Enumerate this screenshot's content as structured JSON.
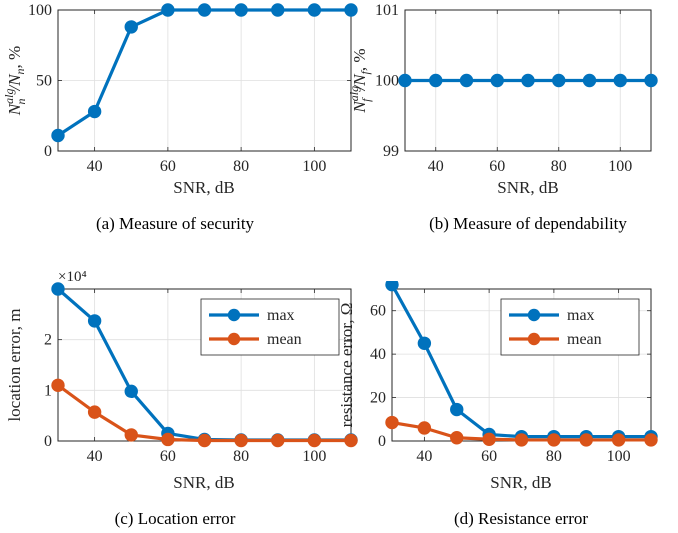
{
  "chart_data": [
    {
      "id": "a",
      "type": "line",
      "caption": "(a) Measure of security",
      "xlabel": "SNR, dB",
      "ylabel": "N_n^{alg}/N_n, %",
      "ylabel_parts": {
        "main": "N",
        "sup": "alg",
        "sub": "n",
        "rest": "/N",
        "sub2": "n",
        "unit": ", %"
      },
      "xlim": [
        30,
        110
      ],
      "ylim": [
        0,
        100
      ],
      "xticks": [
        40,
        60,
        80,
        100
      ],
      "yticks": [
        0,
        50,
        100
      ],
      "grid": true,
      "series": [
        {
          "color": "#0072BD",
          "x": [
            30,
            40,
            50,
            60,
            70,
            80,
            90,
            100,
            110
          ],
          "y": [
            11,
            28,
            88,
            100,
            100,
            100,
            100,
            100,
            100
          ]
        }
      ]
    },
    {
      "id": "b",
      "type": "line",
      "caption": "(b) Measure of dependability",
      "xlabel": "SNR, dB",
      "ylabel": "N_f^{alg}/N_f, %",
      "ylabel_parts": {
        "main": "N",
        "sup": "alg",
        "sub": "f",
        "rest": "/N",
        "sub2": "f",
        "unit": ", %"
      },
      "xlim": [
        30,
        110
      ],
      "ylim": [
        99,
        101
      ],
      "xticks": [
        40,
        60,
        80,
        100
      ],
      "yticks": [
        99,
        100,
        101
      ],
      "grid": true,
      "series": [
        {
          "color": "#0072BD",
          "x": [
            30,
            40,
            50,
            60,
            70,
            80,
            90,
            100,
            110
          ],
          "y": [
            100,
            100,
            100,
            100,
            100,
            100,
            100,
            100,
            100
          ]
        }
      ]
    },
    {
      "id": "c",
      "type": "line",
      "caption": "(c) Location error",
      "xlabel": "SNR, dB",
      "ylabel": "location error, m",
      "exponent_label": "×10⁴",
      "xlim": [
        30,
        110
      ],
      "ylim": [
        0,
        3
      ],
      "xticks": [
        40,
        60,
        80,
        100
      ],
      "yticks": [
        0,
        1,
        2,
        3
      ],
      "ytick_labels": [
        "0",
        "1",
        "2",
        ""
      ],
      "grid": true,
      "legend": {
        "position": "top-right"
      },
      "series": [
        {
          "name": "max",
          "color": "#0072BD",
          "x": [
            30,
            40,
            50,
            60,
            70,
            80,
            90,
            100,
            110
          ],
          "y": [
            3.0,
            2.37,
            0.98,
            0.15,
            0.03,
            0.02,
            0.02,
            0.02,
            0.02
          ]
        },
        {
          "name": "mean",
          "color": "#D95319",
          "x": [
            30,
            40,
            50,
            60,
            70,
            80,
            90,
            100,
            110
          ],
          "y": [
            1.1,
            0.57,
            0.12,
            0.03,
            0.01,
            0.01,
            0.01,
            0.01,
            0.01
          ]
        }
      ]
    },
    {
      "id": "d",
      "type": "line",
      "caption": "(d) Resistance error",
      "xlabel": "SNR, dB",
      "ylabel": "resistance error, Ω",
      "xlim": [
        30,
        110
      ],
      "ylim": [
        0,
        70
      ],
      "xticks": [
        40,
        60,
        80,
        100
      ],
      "yticks": [
        0,
        20,
        40,
        60
      ],
      "grid": true,
      "legend": {
        "position": "top-right"
      },
      "series": [
        {
          "name": "max",
          "color": "#0072BD",
          "x": [
            30,
            40,
            50,
            60,
            70,
            80,
            90,
            100,
            110
          ],
          "y": [
            72,
            45,
            14.5,
            3,
            2,
            2,
            2,
            2,
            2
          ]
        },
        {
          "name": "mean",
          "color": "#D95319",
          "x": [
            30,
            40,
            50,
            60,
            70,
            80,
            90,
            100,
            110
          ],
          "y": [
            8.5,
            6,
            1.5,
            0.8,
            0.5,
            0.5,
            0.5,
            0.5,
            0.5
          ]
        }
      ]
    }
  ]
}
